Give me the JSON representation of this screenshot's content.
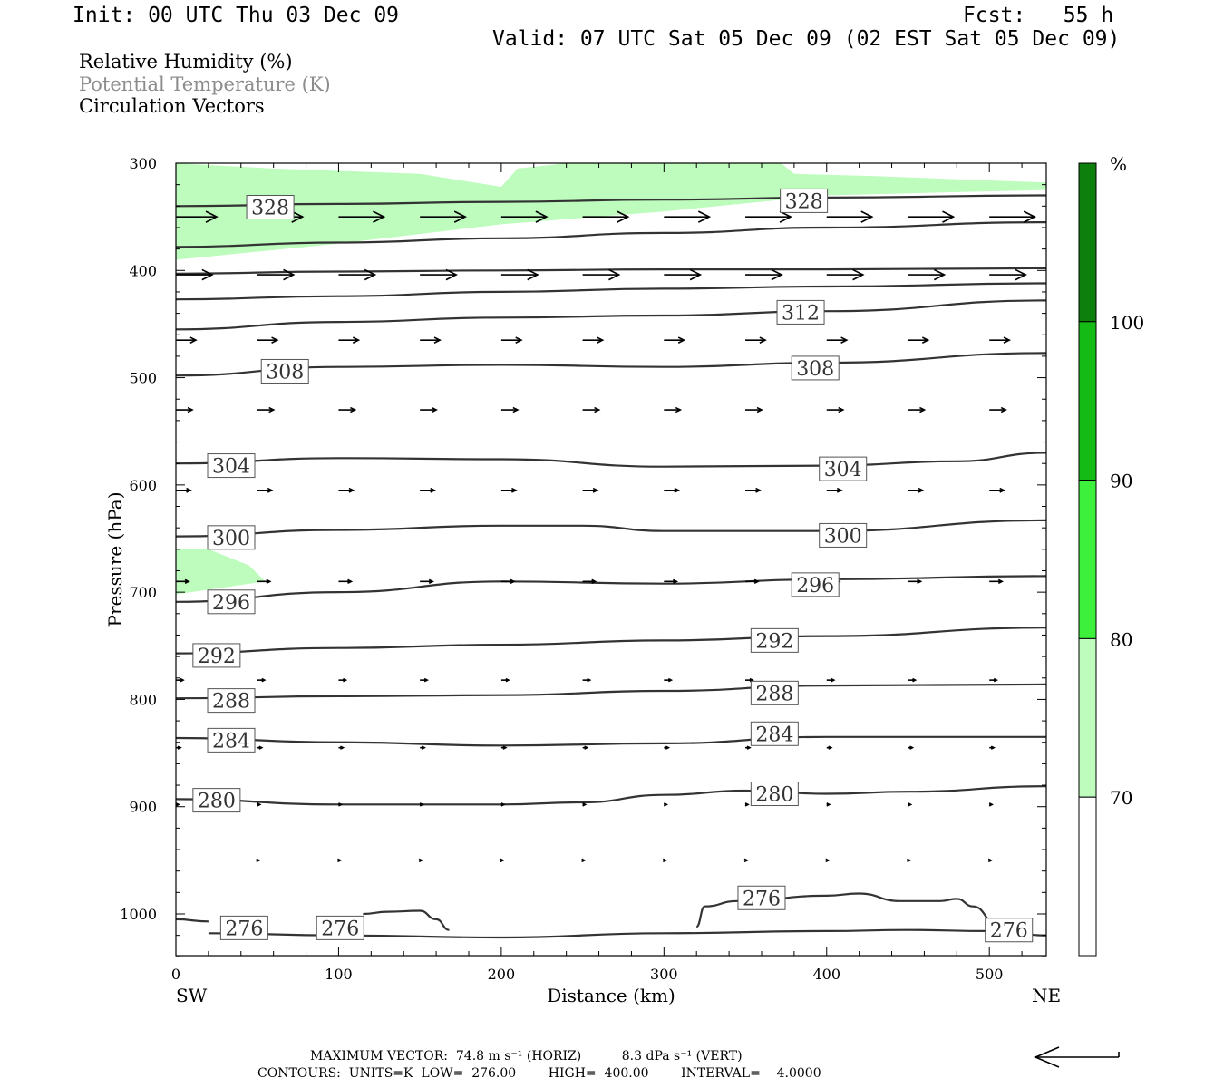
{
  "header": {
    "init": "Init: 00 UTC Thu 03 Dec 09",
    "fcst": "Fcst:   55 h",
    "valid": "Valid: 07 UTC Sat 05 Dec 09 (02 EST Sat 05 Dec 09)",
    "legend": [
      "Relative Humidity (%)",
      "Potential Temperature (K)",
      "Circulation Vectors"
    ]
  },
  "footer": {
    "line1": "MAXIMUM VECTOR:  74.8 m s⁻¹ (HORIZ)          8.3 dPa s⁻¹ (VERT)",
    "line2": "CONTOURS:  UNITS=K  LOW=  276.00        HIGH=  400.00        INTERVAL=    4.0000"
  },
  "colors": {
    "rh_70": "#bdfcbd",
    "rh_80": "#3cf03c",
    "rh_90": "#14bb14",
    "rh_100": "#0c7f0c",
    "contour": "#333333"
  },
  "chart_data": {
    "type": "cross-section",
    "xlabel": "Distance (km)",
    "ylabel": "Pressure (hPa)",
    "xlim": [
      0,
      535
    ],
    "ylim": [
      1040,
      300
    ],
    "x_ticks": [
      "0",
      "100",
      "200",
      "300",
      "400",
      "500"
    ],
    "y_ticks": [
      "300",
      "400",
      "500",
      "600",
      "700",
      "800",
      "900",
      "1000"
    ],
    "x_end_labels": {
      "left": "SW",
      "right": "NE"
    },
    "colorbar": {
      "unit": "%",
      "labels": [
        "70",
        "80",
        "90",
        "100"
      ]
    },
    "contour_labels": [
      {
        "text": "328",
        "x": 58,
        "p": 341
      },
      {
        "text": "328",
        "x": 386,
        "p": 335
      },
      {
        "text": "312",
        "x": 384,
        "p": 439
      },
      {
        "text": "308",
        "x": 67,
        "p": 494
      },
      {
        "text": "308",
        "x": 393,
        "p": 491
      },
      {
        "text": "304",
        "x": 34,
        "p": 582
      },
      {
        "text": "304",
        "x": 410,
        "p": 585
      },
      {
        "text": "300",
        "x": 34,
        "p": 649
      },
      {
        "text": "300",
        "x": 410,
        "p": 647
      },
      {
        "text": "296",
        "x": 34,
        "p": 709
      },
      {
        "text": "296",
        "x": 393,
        "p": 693
      },
      {
        "text": "292",
        "x": 25,
        "p": 759
      },
      {
        "text": "292",
        "x": 368,
        "p": 745
      },
      {
        "text": "288",
        "x": 34,
        "p": 801
      },
      {
        "text": "288",
        "x": 368,
        "p": 794
      },
      {
        "text": "284",
        "x": 34,
        "p": 838
      },
      {
        "text": "284",
        "x": 368,
        "p": 832
      },
      {
        "text": "280",
        "x": 25,
        "p": 894
      },
      {
        "text": "280",
        "x": 368,
        "p": 888
      },
      {
        "text": "276",
        "x": 42,
        "p": 1013
      },
      {
        "text": "276",
        "x": 101,
        "p": 1013
      },
      {
        "text": "276",
        "x": 360,
        "p": 985
      },
      {
        "text": "276",
        "x": 512,
        "p": 1015
      }
    ],
    "theta_lines": [
      {
        "x": [
          0,
          100,
          200,
          300,
          400,
          535
        ],
        "p": [
          340,
          338,
          336,
          334,
          332,
          330
        ]
      },
      {
        "x": [
          0,
          100,
          200,
          300,
          400,
          535
        ],
        "p": [
          378,
          374,
          370,
          365,
          360,
          355
        ]
      },
      {
        "x": [
          0,
          100,
          200,
          300,
          400,
          535
        ],
        "p": [
          403,
          401,
          400,
          399,
          399,
          398
        ]
      },
      {
        "x": [
          0,
          100,
          200,
          300,
          400,
          535
        ],
        "p": [
          427,
          424,
          420,
          417,
          415,
          412
        ]
      },
      {
        "x": [
          0,
          100,
          200,
          300,
          400,
          535
        ],
        "p": [
          455,
          448,
          444,
          442,
          438,
          428
        ]
      },
      {
        "x": [
          0,
          100,
          200,
          300,
          400,
          535
        ],
        "p": [
          498,
          490,
          488,
          490,
          486,
          477
        ]
      },
      {
        "x": [
          0,
          100,
          200,
          300,
          400,
          480,
          535
        ],
        "p": [
          580,
          575,
          576,
          583,
          582,
          578,
          570
        ]
      },
      {
        "x": [
          0,
          100,
          200,
          250,
          300,
          400,
          535
        ],
        "p": [
          648,
          642,
          638,
          638,
          643,
          643,
          633
        ]
      },
      {
        "x": [
          0,
          100,
          200,
          300,
          400,
          535
        ],
        "p": [
          709,
          700,
          690,
          692,
          688,
          685
        ]
      },
      {
        "x": [
          0,
          100,
          200,
          300,
          400,
          535
        ],
        "p": [
          757,
          752,
          749,
          745,
          741,
          733
        ]
      },
      {
        "x": [
          0,
          100,
          200,
          300,
          400,
          535
        ],
        "p": [
          799,
          797,
          796,
          792,
          787,
          786
        ]
      },
      {
        "x": [
          0,
          100,
          200,
          300,
          400,
          535
        ],
        "p": [
          836,
          840,
          843,
          841,
          835,
          835
        ]
      },
      {
        "x": [
          0,
          100,
          200,
          250,
          300,
          350,
          400,
          450,
          535
        ],
        "p": [
          893,
          898,
          898,
          896,
          889,
          885,
          888,
          886,
          881
        ]
      }
    ],
    "theta_276": [
      {
        "x": [
          0,
          20
        ],
        "p": [
          1005,
          1007
        ]
      },
      {
        "x": [
          20,
          100,
          200,
          300,
          400,
          450,
          500,
          535
        ],
        "p": [
          1018,
          1020,
          1022,
          1018,
          1016,
          1015,
          1016,
          1020
        ]
      },
      {
        "x": [
          115,
          130,
          150,
          160,
          168
        ],
        "p": [
          1000,
          998,
          997,
          1005,
          1015
        ]
      },
      {
        "x": [
          320,
          325,
          345,
          400,
          420,
          445,
          470,
          480,
          490,
          505
        ],
        "p": [
          1012,
          993,
          988,
          983,
          981,
          988,
          988,
          986,
          993,
          1010
        ]
      }
    ],
    "rh_shading": [
      {
        "level": 70,
        "x": [
          0,
          60,
          150,
          200,
          210,
          240,
          300,
          330,
          372,
          380,
          430,
          480,
          535,
          535,
          480,
          400,
          300,
          200,
          100,
          0
        ],
        "p": [
          300,
          305,
          310,
          322,
          305,
          300,
          300,
          300,
          300,
          310,
          312,
          315,
          318,
          325,
          327,
          330,
          345,
          357,
          375,
          390
        ]
      },
      {
        "level": 70,
        "x": [
          0,
          20,
          45,
          55,
          0
        ],
        "p": [
          660,
          660,
          675,
          690,
          702
        ]
      }
    ],
    "vector_rows": [
      {
        "p": 350,
        "x": [
          0,
          50,
          100,
          150,
          200,
          250,
          300,
          350,
          400,
          450,
          500
        ],
        "dx": [
          45,
          50,
          50,
          50,
          50,
          50,
          50,
          50,
          50,
          50,
          50
        ],
        "dy": [
          0,
          0,
          0,
          0,
          0,
          0,
          0,
          0,
          0,
          0,
          0
        ]
      },
      {
        "p": 404,
        "x": [
          0,
          50,
          100,
          150,
          200,
          250,
          300,
          350,
          400,
          450,
          500
        ],
        "dx": [
          40,
          40,
          40,
          40,
          40,
          40,
          40,
          40,
          40,
          40,
          40
        ],
        "dy": [
          0,
          0,
          0,
          0,
          0,
          0,
          0,
          0,
          0,
          0,
          0
        ]
      },
      {
        "p": 465,
        "x": [
          0,
          50,
          100,
          150,
          200,
          250,
          300,
          350,
          400,
          450,
          500
        ],
        "dx": [
          22,
          22,
          22,
          22,
          22,
          22,
          22,
          22,
          22,
          22,
          22
        ],
        "dy": [
          0,
          0,
          0,
          0,
          0,
          0,
          0,
          0,
          0,
          0,
          0
        ]
      },
      {
        "p": 530,
        "x": [
          0,
          50,
          100,
          150,
          200,
          250,
          300,
          350,
          400,
          450,
          500
        ],
        "dx": [
          18,
          18,
          18,
          18,
          18,
          18,
          18,
          18,
          18,
          18,
          18
        ],
        "dy": [
          0,
          0,
          0,
          0,
          0,
          0,
          0,
          0,
          0,
          0,
          0
        ]
      },
      {
        "p": 605,
        "x": [
          0,
          50,
          100,
          150,
          200,
          250,
          300,
          350,
          400,
          450,
          500
        ],
        "dx": [
          16,
          16,
          16,
          16,
          16,
          16,
          16,
          16,
          16,
          16,
          16
        ],
        "dy": [
          0,
          0,
          0,
          0,
          0,
          0,
          0,
          0,
          0,
          0,
          0
        ]
      },
      {
        "p": 690,
        "x": [
          0,
          50,
          100,
          150,
          200,
          250,
          300,
          350,
          400,
          450,
          500
        ],
        "dx": [
          14,
          14,
          14,
          14,
          14,
          14,
          14,
          14,
          14,
          14,
          14
        ],
        "dy": [
          0,
          0,
          0,
          0,
          0,
          0,
          0,
          0,
          0,
          0,
          0
        ]
      },
      {
        "p": 782,
        "x": [
          0,
          50,
          100,
          150,
          200,
          250,
          300,
          350,
          400,
          450,
          500
        ],
        "dx": [
          8,
          8,
          8,
          8,
          8,
          8,
          8,
          8,
          8,
          8,
          8
        ],
        "dy": [
          0,
          0,
          0,
          0,
          0,
          0,
          0,
          0,
          0,
          0,
          0
        ]
      },
      {
        "p": 845,
        "x": [
          0,
          50,
          100,
          150,
          200,
          250,
          300,
          350,
          400,
          450,
          500
        ],
        "dx": [
          5,
          5,
          5,
          5,
          5,
          5,
          5,
          5,
          5,
          5,
          5
        ],
        "dy": [
          0,
          0,
          0,
          0,
          0,
          0,
          0,
          0,
          0,
          0,
          0
        ]
      },
      {
        "p": 898,
        "x": [
          0,
          50,
          100,
          150,
          200,
          250,
          300,
          350,
          400,
          450,
          500
        ],
        "dx": [
          3,
          3,
          3,
          3,
          3,
          3,
          3,
          3,
          3,
          3,
          3
        ],
        "dy": [
          0,
          0,
          0,
          0,
          0,
          0,
          0,
          0,
          0,
          0,
          0
        ]
      },
      {
        "p": 950,
        "x": [
          50,
          100,
          150,
          200,
          250,
          300,
          350,
          400,
          450,
          500
        ],
        "dx": [
          2,
          2,
          2,
          2,
          2,
          2,
          2,
          2,
          2,
          2
        ],
        "dy": [
          0,
          0,
          0,
          0,
          0,
          0,
          0,
          0,
          0,
          0
        ]
      }
    ]
  }
}
